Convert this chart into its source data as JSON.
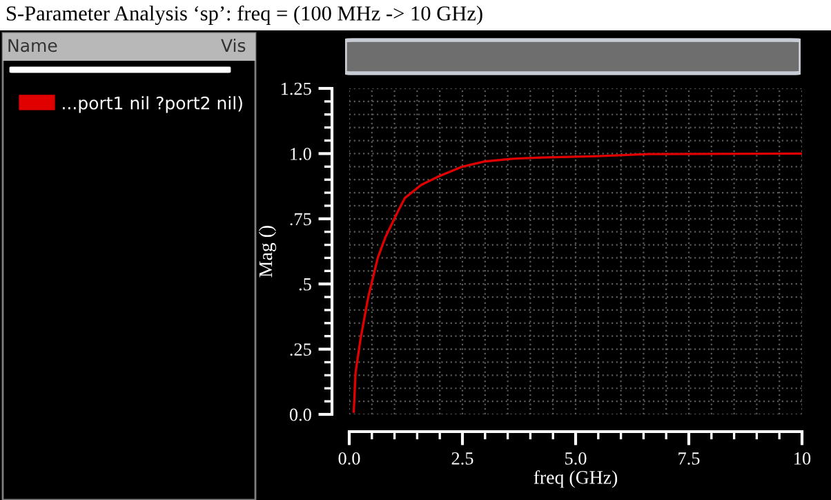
{
  "chart_data": {
    "type": "line",
    "title": "S-Parameter Analysis ‘sp’: freq = (100 MHz -> 10 GHz)",
    "xlabel": "freq (GHz)",
    "ylabel": "Mag ()",
    "annotations": [
      "Name",
      "Vis"
    ],
    "series": [
      {
        "name": "...port1 nil ?port2 nil)",
        "color": "#e00000",
        "x": [
          0.1,
          0.14,
          0.25,
          0.42,
          0.63,
          0.8,
          1.08,
          1.23,
          1.59,
          1.94,
          2.5,
          3.0,
          3.61,
          4.22,
          5.48,
          6.59,
          10
        ],
        "values": [
          0.01,
          0.16,
          0.29,
          0.45,
          0.6,
          0.68,
          0.78,
          0.83,
          0.88,
          0.91,
          0.95,
          0.97,
          0.98,
          0.985,
          0.99,
          0.998,
          1.0
        ]
      }
    ],
    "xlim": [
      0,
      10
    ],
    "ylim": [
      0,
      1.25
    ],
    "xticks": [
      {
        "value": 0,
        "label": "0.0"
      },
      2.5,
      {
        "value": 5,
        "label": "5.0"
      },
      7.5,
      10
    ],
    "yticks": [
      {
        "value": 0,
        "label": "0.0"
      },
      {
        "value": 0.25,
        "label": ".25"
      },
      {
        "value": 0.5,
        "label": ".5"
      },
      {
        "value": 0.75,
        "label": ".75"
      },
      {
        "value": 1.0,
        "label": "1.0"
      },
      1.25
    ],
    "grid": true,
    "legend": "left",
    "marker": "none",
    "line_style": "solid"
  }
}
